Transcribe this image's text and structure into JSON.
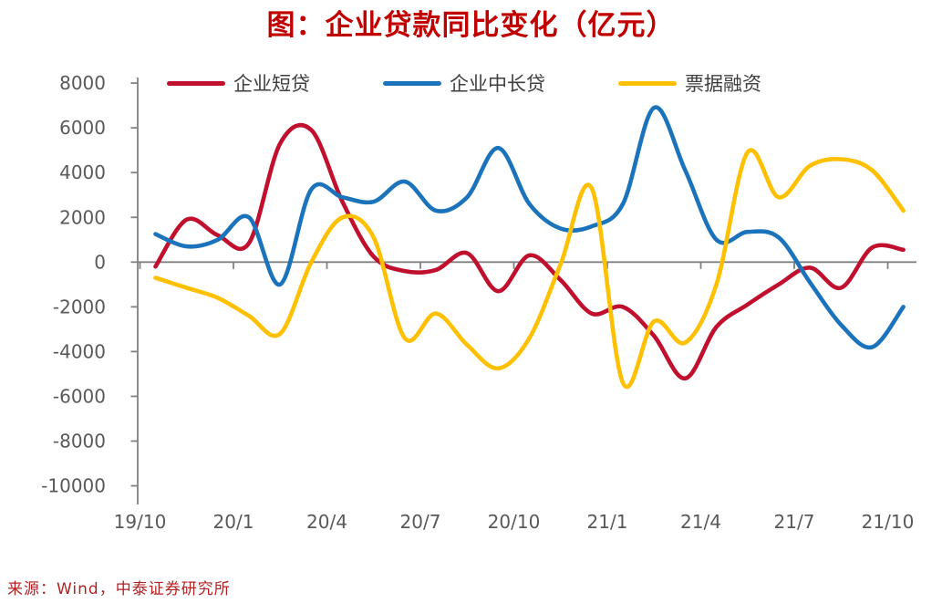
{
  "title": "图：企业贷款同比变化（亿元）",
  "source": "来源：Wind，中泰证券研究所",
  "colors": {
    "title": "#c00000",
    "source": "#b22222",
    "axis": "#808080",
    "tick_text": "#595959",
    "legend_text": "#3f3f3f",
    "series_red": "#c0102e",
    "series_blue": "#1b74bb",
    "series_yellow": "#ffc000"
  },
  "chart_data": {
    "type": "line",
    "title": "图：企业贷款同比变化（亿元）",
    "x": [
      "19/10",
      "19/11",
      "19/12",
      "20/1",
      "20/2",
      "20/3",
      "20/4",
      "20/5",
      "20/6",
      "20/7",
      "20/8",
      "20/9",
      "20/10",
      "20/11",
      "20/12",
      "21/1",
      "21/2",
      "21/3",
      "21/4",
      "21/5",
      "21/6",
      "21/7",
      "21/8",
      "21/9",
      "21/10"
    ],
    "x_tick_labels": [
      "19/10",
      "20/1",
      "20/4",
      "20/7",
      "20/10",
      "21/1",
      "21/4",
      "21/7",
      "21/10"
    ],
    "y_ticks": [
      8000,
      6000,
      4000,
      2000,
      0,
      -2000,
      -4000,
      -6000,
      -8000,
      -10000
    ],
    "ylim": [
      -10000,
      8000
    ],
    "unit": "亿元",
    "grid": "zero-line-only",
    "legend_position": "top",
    "smooth": true,
    "series": [
      {
        "name": "企业短贷",
        "color": "#c0102e",
        "values": [
          -200,
          1900,
          1200,
          850,
          5300,
          5900,
          2700,
          250,
          -400,
          -350,
          400,
          -1300,
          300,
          -800,
          -2300,
          -2000,
          -3300,
          -5200,
          -2900,
          -1900,
          -1000,
          -250,
          -1150,
          650,
          550
        ]
      },
      {
        "name": "企业中长贷",
        "color": "#1b74bb",
        "values": [
          1250,
          700,
          1000,
          2000,
          -1000,
          3250,
          2900,
          2700,
          3600,
          2300,
          2900,
          5100,
          2600,
          1500,
          1600,
          2600,
          6900,
          4100,
          1000,
          1350,
          1100,
          -900,
          -2800,
          -3800,
          -2000
        ]
      },
      {
        "name": "票据融资",
        "color": "#ffc000",
        "values": [
          -700,
          -1150,
          -1600,
          -2400,
          -3200,
          0,
          2000,
          1100,
          -3400,
          -2300,
          -3700,
          -4750,
          -3400,
          -100,
          3300,
          -5400,
          -2650,
          -3600,
          -1000,
          4900,
          2900,
          4300,
          4600,
          4100,
          2300
        ]
      }
    ]
  }
}
